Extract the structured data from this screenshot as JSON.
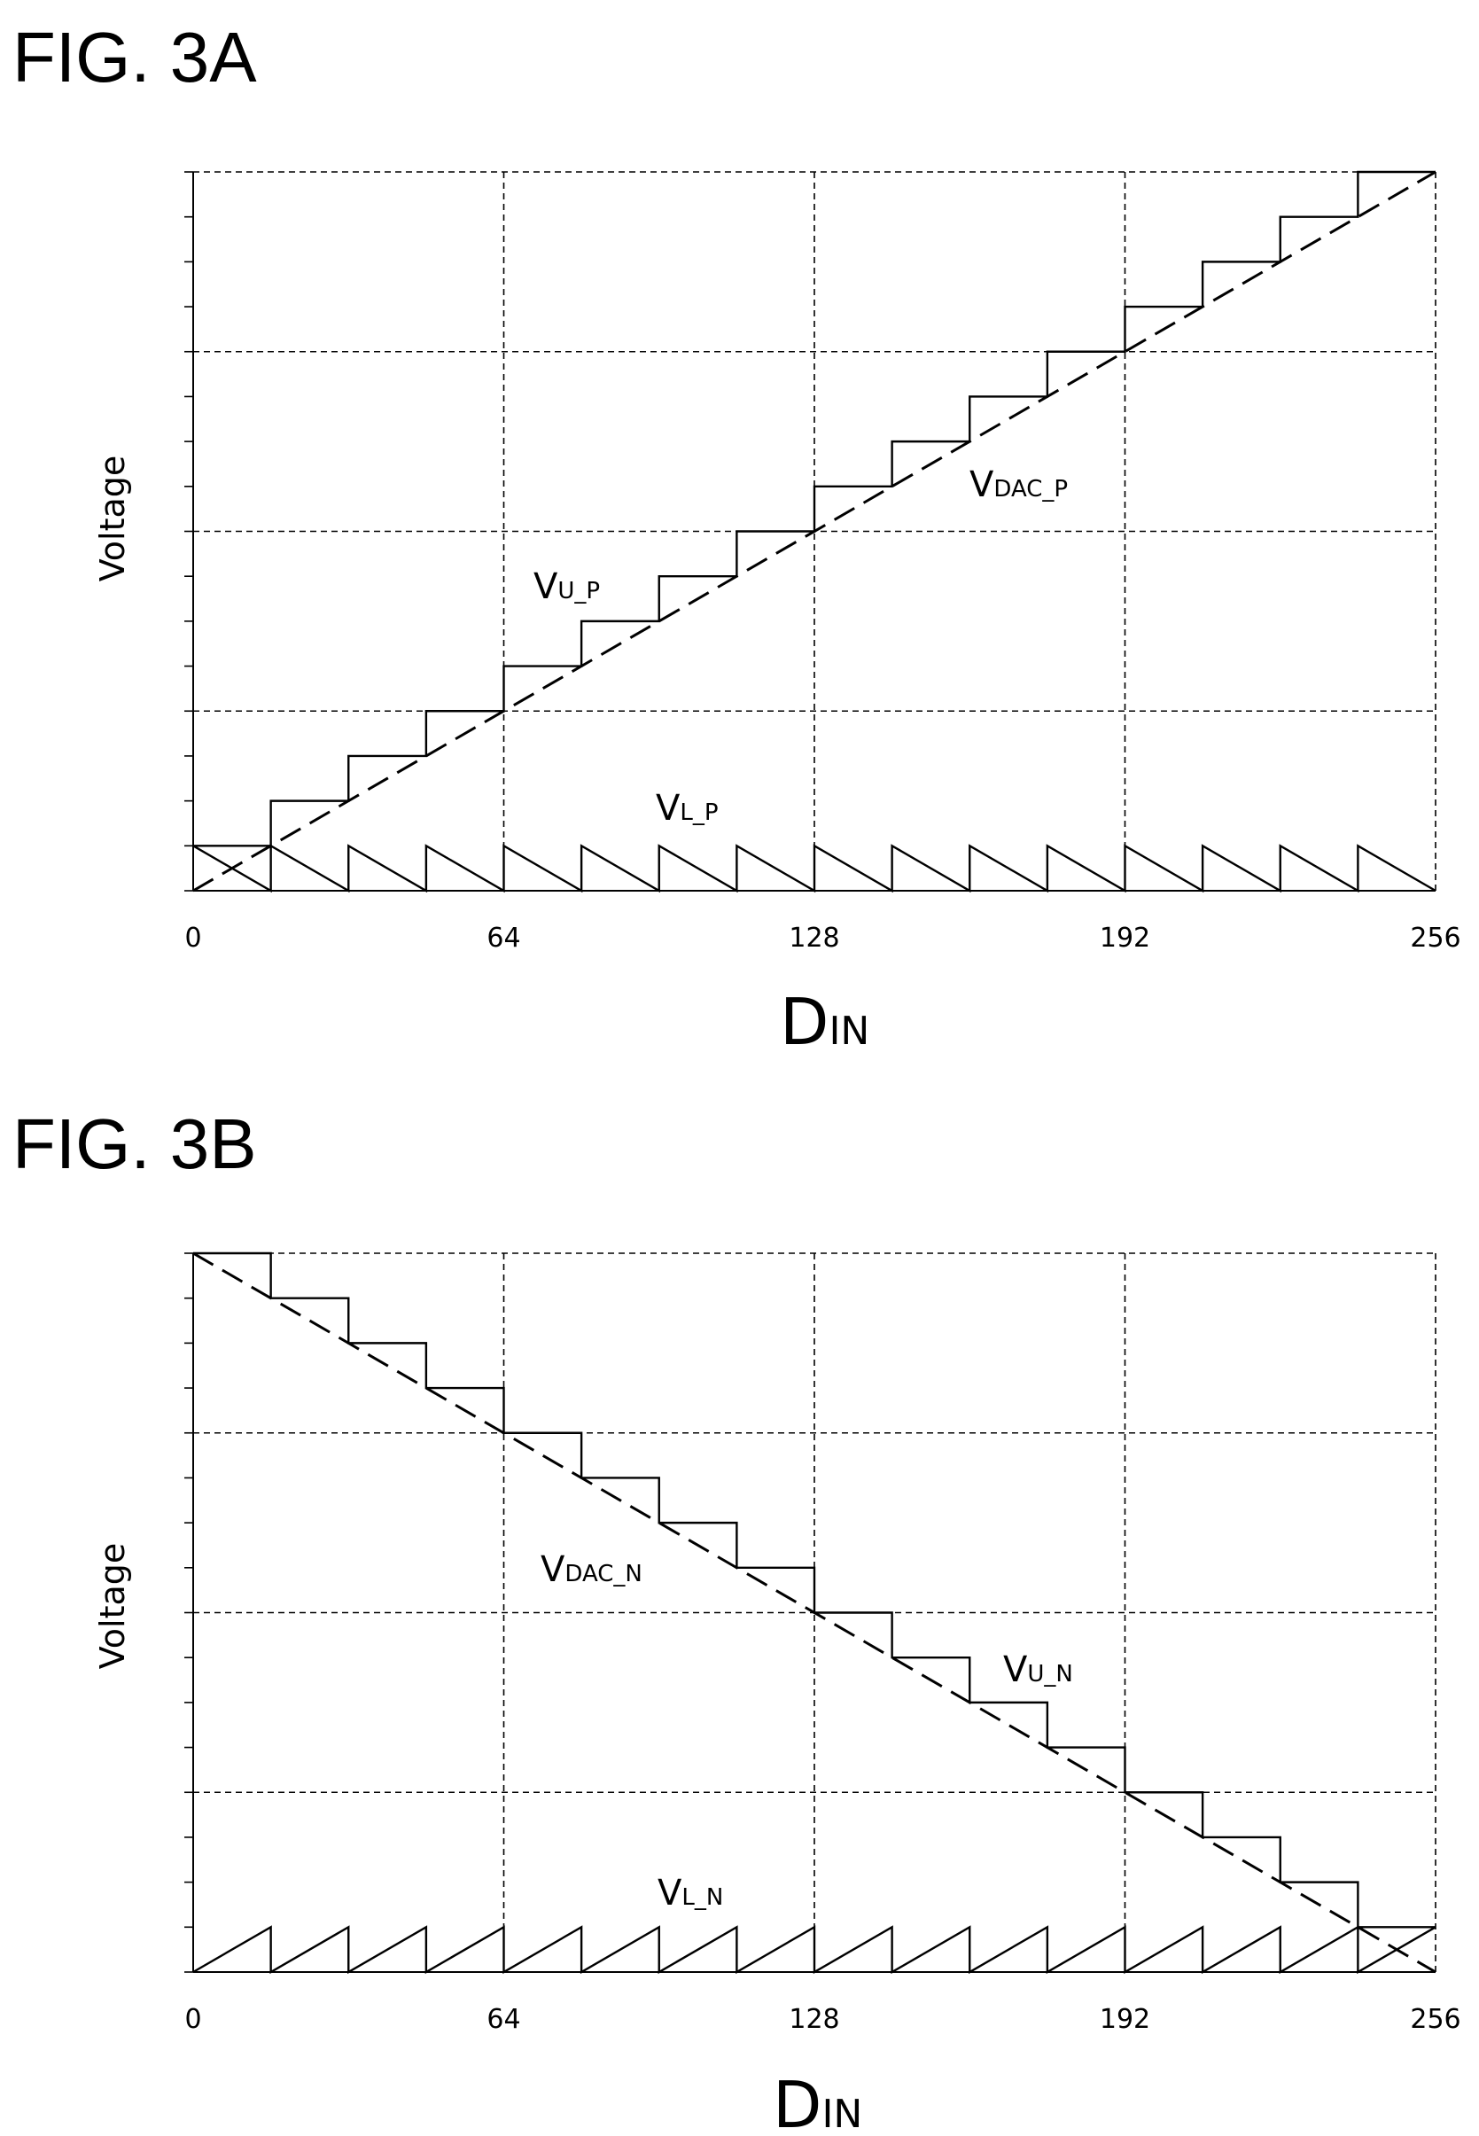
{
  "chart_data": [
    {
      "type": "line",
      "title": "FIG. 3A",
      "ylabel": "Voltage",
      "xlabel_main": "D",
      "xlabel_sub": "IN",
      "xlim": [
        0,
        256
      ],
      "ylim": [
        0,
        16
      ],
      "x_ticks": [
        "0",
        "64",
        "128",
        "192",
        "256"
      ],
      "grid": true,
      "step": 16,
      "series": [
        {
          "name_main": "V",
          "name_sub": "DAC_P",
          "kind": "ramp-up",
          "style": "dashed",
          "x": [
            0,
            256
          ],
          "y": [
            0,
            16
          ]
        },
        {
          "name_main": "V",
          "name_sub": "U_P",
          "kind": "staircase-up",
          "style": "solid"
        },
        {
          "name_main": "V",
          "name_sub": "L_P",
          "kind": "sawtooth-down",
          "style": "solid"
        }
      ]
    },
    {
      "type": "line",
      "title": "FIG. 3B",
      "ylabel": "Voltage",
      "xlabel_main": "D",
      "xlabel_sub": "IN",
      "xlim": [
        0,
        256
      ],
      "ylim": [
        0,
        16
      ],
      "x_ticks": [
        "0",
        "64",
        "128",
        "192",
        "256"
      ],
      "grid": true,
      "step": 16,
      "series": [
        {
          "name_main": "V",
          "name_sub": "DAC_N",
          "kind": "ramp-down",
          "style": "dashed",
          "x": [
            0,
            256
          ],
          "y": [
            16,
            0
          ]
        },
        {
          "name_main": "V",
          "name_sub": "U_N",
          "kind": "staircase-down",
          "style": "solid"
        },
        {
          "name_main": "V",
          "name_sub": "L_N",
          "kind": "sawtooth-up",
          "style": "solid"
        }
      ]
    }
  ]
}
